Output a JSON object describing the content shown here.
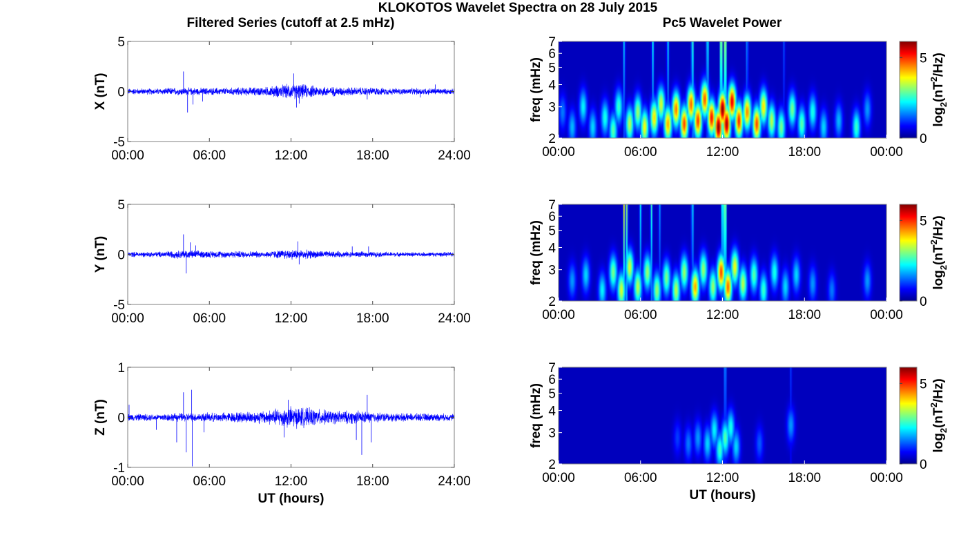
{
  "figure": {
    "title": "KLOKOTOS Wavelet Spectra on 28 July 2015",
    "left_column_title": "Filtered Series (cutoff at 2.5 mHz)",
    "right_column_title": "Pc5 Wavelet Power"
  },
  "colors": {
    "series_line": "#0000ff",
    "spectrogram_background": "#00008f",
    "frame": "#7f7f7f"
  },
  "chart_data": [
    {
      "type": "line",
      "panel": "time-series-x",
      "ylabel": "X (nT)",
      "xlabel": "",
      "xlim": [
        0,
        24
      ],
      "ylim": [
        -5,
        5
      ],
      "yticks": [
        "-5",
        "0",
        "5"
      ],
      "xticks": [
        "00:00",
        "06:00",
        "12:00",
        "18:00",
        "24:00"
      ],
      "noise_envelope": [
        [
          0,
          0.35
        ],
        [
          2,
          0.35
        ],
        [
          4,
          0.45
        ],
        [
          6,
          0.4
        ],
        [
          8,
          0.45
        ],
        [
          10,
          0.5
        ],
        [
          11.5,
          0.8
        ],
        [
          12.5,
          0.9
        ],
        [
          14,
          0.6
        ],
        [
          16,
          0.5
        ],
        [
          18,
          0.45
        ],
        [
          20,
          0.35
        ],
        [
          22,
          0.4
        ],
        [
          24,
          0.3
        ]
      ],
      "spikes": [
        [
          4.1,
          2.0
        ],
        [
          4.4,
          -2.1
        ],
        [
          4.8,
          -1.3
        ],
        [
          5.5,
          -1.0
        ],
        [
          12.2,
          1.8
        ],
        [
          12.4,
          -1.6
        ],
        [
          12.6,
          -1.2
        ],
        [
          17.6,
          -0.8
        ],
        [
          21.5,
          -0.6
        ],
        [
          22.6,
          0.7
        ]
      ]
    },
    {
      "type": "line",
      "panel": "time-series-y",
      "ylabel": "Y (nT)",
      "xlabel": "",
      "xlim": [
        0,
        24
      ],
      "ylim": [
        -5,
        5
      ],
      "yticks": [
        "-5",
        "0",
        "5"
      ],
      "xticks": [
        "00:00",
        "06:00",
        "12:00",
        "18:00",
        "24:00"
      ],
      "noise_envelope": [
        [
          0,
          0.3
        ],
        [
          2,
          0.3
        ],
        [
          4,
          0.5
        ],
        [
          6,
          0.4
        ],
        [
          8,
          0.4
        ],
        [
          10,
          0.35
        ],
        [
          12,
          0.6
        ],
        [
          13,
          0.5
        ],
        [
          15,
          0.35
        ],
        [
          18,
          0.3
        ],
        [
          20,
          0.25
        ],
        [
          24,
          0.25
        ]
      ],
      "spikes": [
        [
          4.1,
          2.0
        ],
        [
          4.3,
          -1.9
        ],
        [
          4.6,
          1.2
        ],
        [
          5.0,
          0.9
        ],
        [
          12.5,
          1.3
        ],
        [
          12.6,
          -1.0
        ],
        [
          16.5,
          0.8
        ],
        [
          17.7,
          0.8
        ]
      ]
    },
    {
      "type": "line",
      "panel": "time-series-z",
      "ylabel": "Z (nT)",
      "xlabel": "UT (hours)",
      "xlim": [
        0,
        24
      ],
      "ylim": [
        -1,
        1
      ],
      "yticks": [
        "-1",
        "0",
        "1"
      ],
      "xticks": [
        "00:00",
        "06:00",
        "12:00",
        "18:00",
        "24:00"
      ],
      "noise_envelope": [
        [
          0,
          0.08
        ],
        [
          2,
          0.08
        ],
        [
          4,
          0.1
        ],
        [
          6,
          0.1
        ],
        [
          8,
          0.12
        ],
        [
          10,
          0.15
        ],
        [
          11,
          0.2
        ],
        [
          12,
          0.25
        ],
        [
          13,
          0.22
        ],
        [
          15,
          0.15
        ],
        [
          17,
          0.15
        ],
        [
          18,
          0.12
        ],
        [
          20,
          0.09
        ],
        [
          22,
          0.09
        ],
        [
          24,
          0.08
        ]
      ],
      "spikes": [
        [
          0.1,
          0.25
        ],
        [
          2.1,
          -0.25
        ],
        [
          3.6,
          -0.5
        ],
        [
          4.1,
          0.5
        ],
        [
          4.3,
          -0.7
        ],
        [
          4.7,
          0.55
        ],
        [
          4.75,
          -0.98
        ],
        [
          5.6,
          -0.3
        ],
        [
          11.5,
          -0.4
        ],
        [
          11.8,
          0.35
        ],
        [
          16.8,
          -0.45
        ],
        [
          17.2,
          -0.75
        ],
        [
          17.6,
          0.45
        ],
        [
          17.9,
          -0.5
        ]
      ]
    },
    {
      "type": "heatmap",
      "panel": "wavelet-power-x",
      "ylabel": "freq (mHz)",
      "xlabel": "",
      "colorbar_label": "log2(nT^2/Hz)",
      "xlim": [
        0,
        24
      ],
      "ylim": [
        2,
        7
      ],
      "yscale": "log",
      "clim": [
        0,
        6
      ],
      "colorbar_ticks": [
        "0",
        "5"
      ],
      "yticks": [
        "2",
        "3",
        "4",
        "5",
        "6",
        "7"
      ],
      "xticks": [
        "00:00",
        "06:00",
        "12:00",
        "18:00",
        "00:00"
      ],
      "blobs": [
        [
          0.3,
          2.8,
          1.2
        ],
        [
          1.0,
          2.3,
          1.6
        ],
        [
          1.8,
          3.0,
          2.0
        ],
        [
          2.5,
          2.3,
          1.8
        ],
        [
          3.4,
          2.6,
          2.2
        ],
        [
          4.0,
          2.2,
          2.6
        ],
        [
          4.4,
          3.0,
          2.4
        ],
        [
          5.2,
          2.4,
          3.2
        ],
        [
          5.8,
          2.8,
          3.0
        ],
        [
          6.3,
          2.3,
          3.6
        ],
        [
          7.0,
          2.6,
          3.8
        ],
        [
          7.5,
          3.1,
          3.4
        ],
        [
          8.0,
          2.4,
          4.2
        ],
        [
          8.6,
          2.9,
          4.5
        ],
        [
          9.2,
          2.4,
          4.8
        ],
        [
          9.7,
          3.1,
          4.6
        ],
        [
          10.2,
          2.5,
          4.9
        ],
        [
          10.7,
          3.3,
          4.7
        ],
        [
          11.2,
          2.6,
          5.2
        ],
        [
          11.7,
          2.3,
          6.0
        ],
        [
          12.0,
          2.9,
          6.0
        ],
        [
          12.3,
          2.4,
          5.8
        ],
        [
          12.7,
          3.2,
          5.4
        ],
        [
          13.2,
          2.5,
          5.0
        ],
        [
          13.8,
          2.8,
          4.4
        ],
        [
          14.5,
          2.4,
          4.8
        ],
        [
          15.0,
          3.0,
          3.8
        ],
        [
          15.6,
          2.5,
          3.2
        ],
        [
          16.3,
          2.3,
          2.8
        ],
        [
          17.1,
          2.9,
          2.8
        ],
        [
          17.8,
          2.4,
          2.6
        ],
        [
          18.6,
          2.8,
          2.2
        ],
        [
          19.4,
          2.3,
          1.8
        ],
        [
          20.5,
          2.5,
          1.6
        ],
        [
          21.8,
          2.3,
          2.4
        ],
        [
          22.6,
          2.9,
          1.4
        ]
      ],
      "streaks": [
        [
          4.8,
          0.5,
          1.8
        ],
        [
          6.9,
          0.4,
          2.6
        ],
        [
          8.0,
          0.4,
          2.4
        ],
        [
          9.8,
          0.5,
          2.8
        ],
        [
          10.9,
          0.5,
          2.6
        ],
        [
          11.9,
          0.6,
          3.6
        ],
        [
          12.2,
          0.6,
          3.8
        ],
        [
          13.8,
          0.4,
          2.0
        ],
        [
          16.5,
          0.3,
          1.6
        ]
      ]
    },
    {
      "type": "heatmap",
      "panel": "wavelet-power-y",
      "ylabel": "freq (mHz)",
      "xlabel": "",
      "colorbar_label": "log2(nT^2/Hz)",
      "xlim": [
        0,
        24
      ],
      "ylim": [
        2,
        7
      ],
      "yscale": "log",
      "clim": [
        0,
        6
      ],
      "colorbar_ticks": [
        "0",
        "5"
      ],
      "yticks": [
        "2",
        "3",
        "4",
        "5",
        "6",
        "7"
      ],
      "xticks": [
        "00:00",
        "06:00",
        "12:00",
        "18:00",
        "00:00"
      ],
      "blobs": [
        [
          1.0,
          2.6,
          1.4
        ],
        [
          2.0,
          2.8,
          1.8
        ],
        [
          3.2,
          2.3,
          2.0
        ],
        [
          4.0,
          2.9,
          2.8
        ],
        [
          4.6,
          2.3,
          3.4
        ],
        [
          5.2,
          3.1,
          3.4
        ],
        [
          5.8,
          2.4,
          3.2
        ],
        [
          6.5,
          2.9,
          3.0
        ],
        [
          7.2,
          2.3,
          3.0
        ],
        [
          7.9,
          2.7,
          2.8
        ],
        [
          8.6,
          2.3,
          3.2
        ],
        [
          9.2,
          2.9,
          3.0
        ],
        [
          10.0,
          2.4,
          4.2
        ],
        [
          10.6,
          3.0,
          3.0
        ],
        [
          11.3,
          2.4,
          3.0
        ],
        [
          11.9,
          2.9,
          4.8
        ],
        [
          12.4,
          2.4,
          4.6
        ],
        [
          12.9,
          3.1,
          3.6
        ],
        [
          13.5,
          2.5,
          3.2
        ],
        [
          14.3,
          2.8,
          2.6
        ],
        [
          15.0,
          2.3,
          2.4
        ],
        [
          15.8,
          2.9,
          2.2
        ],
        [
          16.6,
          2.4,
          1.8
        ],
        [
          17.4,
          2.8,
          1.8
        ],
        [
          18.6,
          2.5,
          1.4
        ],
        [
          20.0,
          2.3,
          1.2
        ],
        [
          22.6,
          2.6,
          1.4
        ]
      ],
      "streaks": [
        [
          4.8,
          0.5,
          3.6
        ],
        [
          5.0,
          0.4,
          3.8
        ],
        [
          6.0,
          0.4,
          2.6
        ],
        [
          6.8,
          0.5,
          2.4
        ],
        [
          9.8,
          0.5,
          2.2
        ],
        [
          12.0,
          0.5,
          3.2
        ],
        [
          12.2,
          0.6,
          3.6
        ],
        [
          7.4,
          0.4,
          1.8
        ]
      ]
    },
    {
      "type": "heatmap",
      "panel": "wavelet-power-z",
      "ylabel": "freq (mHz)",
      "xlabel": "UT (hours)",
      "colorbar_label": "log2(nT^2/Hz)",
      "xlim": [
        0,
        24
      ],
      "ylim": [
        2,
        7
      ],
      "yscale": "log",
      "clim": [
        0,
        6
      ],
      "colorbar_ticks": [
        "0",
        "5"
      ],
      "yticks": [
        "2",
        "3",
        "4",
        "5",
        "6",
        "7"
      ],
      "xticks": [
        "00:00",
        "06:00",
        "12:00",
        "18:00",
        "00:00"
      ],
      "blobs": [
        [
          8.7,
          2.8,
          0.8
        ],
        [
          9.5,
          2.6,
          1.2
        ],
        [
          10.2,
          2.8,
          1.4
        ],
        [
          10.9,
          2.6,
          1.8
        ],
        [
          11.4,
          3.1,
          2.0
        ],
        [
          11.8,
          2.4,
          2.4
        ],
        [
          12.2,
          2.8,
          2.6
        ],
        [
          12.6,
          3.2,
          2.2
        ],
        [
          13.0,
          2.5,
          1.8
        ],
        [
          14.7,
          2.6,
          1.0
        ],
        [
          17.0,
          3.3,
          1.4
        ]
      ],
      "streaks": [
        [
          12.2,
          0.5,
          1.8
        ],
        [
          17.0,
          0.4,
          1.0
        ]
      ]
    }
  ]
}
